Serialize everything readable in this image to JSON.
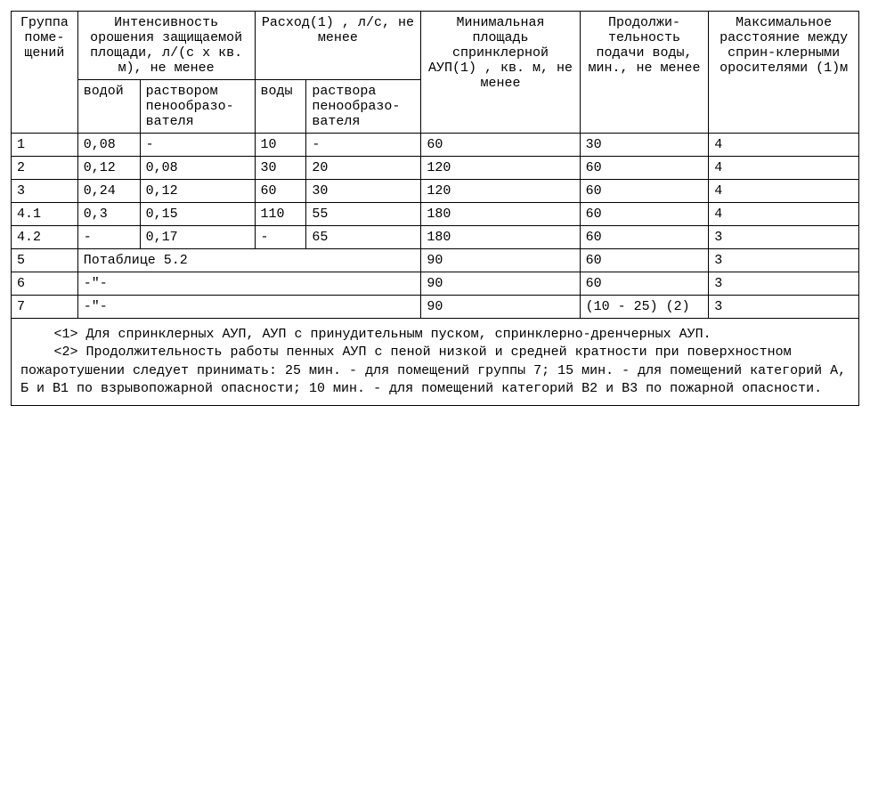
{
  "table": {
    "headers": {
      "group": "Группа поме-щений",
      "intensity": "Интенсивность орошения защищаемой площади, л/(с x кв. м), не менее",
      "flow": "Расход(1) , л/с, не менее",
      "area": "Минимальная площадь спринклерной АУП(1) , кв. м, не менее",
      "duration": "Продолжи-тельность подачи воды, мин., не менее",
      "distance": "Максимальное расстояние между сприн-клерными оросителями (1)м",
      "sub_water": "водой",
      "sub_foam": "раствором пенообразо-вателя",
      "sub_flow_water": "воды",
      "sub_flow_foam": "раствора пенообразо-вателя"
    },
    "rows": [
      {
        "group": "1",
        "water": "0,08",
        "foam": "-",
        "flow_water": "10",
        "flow_foam": "-",
        "area": "60",
        "duration": "30",
        "distance": "4"
      },
      {
        "group": "2",
        "water": "0,12",
        "foam": "0,08",
        "flow_water": "30",
        "flow_foam": "20",
        "area": "120",
        "duration": "60",
        "distance": "4"
      },
      {
        "group": "3",
        "water": "0,24",
        "foam": "0,12",
        "flow_water": "60",
        "flow_foam": "30",
        "area": "120",
        "duration": "60",
        "distance": "4"
      },
      {
        "group": "4.1",
        "water": "0,3",
        "foam": "0,15",
        "flow_water": "110",
        "flow_foam": "55",
        "area": "180",
        "duration": "60",
        "distance": "4"
      },
      {
        "group": "4.2",
        "water": "-",
        "foam": "0,17",
        "flow_water": "-",
        "flow_foam": "65",
        "area": "180",
        "duration": "60",
        "distance": "3"
      }
    ],
    "merged_rows": [
      {
        "group": "5",
        "merged": "Потаблице 5.2",
        "area": "90",
        "duration": "60",
        "distance": "3"
      },
      {
        "group": "6",
        "merged": "-\"-",
        "area": "90",
        "duration": "60",
        "distance": "3"
      },
      {
        "group": "7",
        "merged": "-\"-",
        "area": "90",
        "duration": "(10 - 25) (2)",
        "distance": "3"
      }
    ],
    "footnotes": {
      "note1": "<1> Для спринклерных АУП, АУП с принудительным пуском, спринклерно-дренчерных АУП.",
      "note2": "<2> Продолжительность работы пенных АУП с пеной низкой и средней кратности при поверхностном пожаротушении следует принимать: 25 мин. - для помещений группы 7; 15 мин. - для помещений категорий А, Б и В1 по взрывопожарной опасности; 10 мин. - для помещений категорий В2 и В3 по пожарной опасности."
    }
  }
}
